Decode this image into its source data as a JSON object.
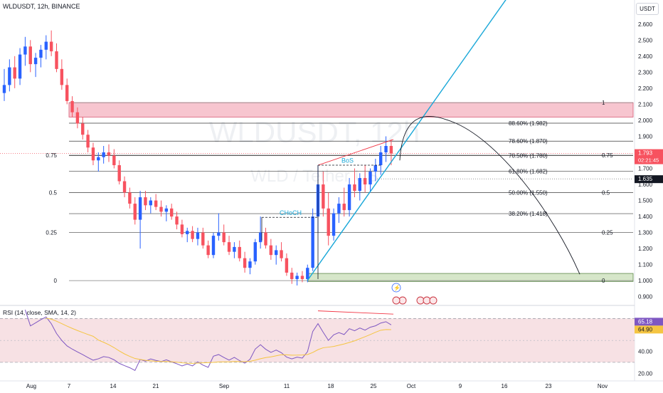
{
  "header": {
    "symbol_line": "WLDUSDT, 12h, BINANCE",
    "currency": "USDT"
  },
  "watermark": {
    "symbol": "WLDUSDT, 12h",
    "pair": "WLD / Tether US"
  },
  "chart_data": {
    "type": "candlestick",
    "title": "WLDUSDT, 12h, BINANCE",
    "ylim": [
      0.85,
      2.75
    ],
    "price_ticks": [
      "2.600",
      "2.500",
      "2.400",
      "2.300",
      "2.200",
      "2.100",
      "2.000",
      "1.900",
      "1.800",
      "1.700",
      "1.600",
      "1.500",
      "1.400",
      "1.300",
      "1.200",
      "1.100",
      "1.000",
      "0.900"
    ],
    "time_ticks": [
      "Aug",
      "7",
      "14",
      "21",
      "Sep",
      "11",
      "18",
      "25",
      "Oct",
      "9",
      "16",
      "23",
      "Nov"
    ],
    "last_price": {
      "value": "1.793",
      "countdown": "02:21:45"
    },
    "level_label": "1.635",
    "fib_left": [
      "0.75",
      "0.5",
      "0.25",
      "0"
    ],
    "fib_right": [
      "1",
      "0.75",
      "0.5",
      "0.25",
      "0"
    ],
    "fib_levels": [
      {
        "label": "88.60% (1.982)",
        "value": 1.982
      },
      {
        "label": "78.60% (1.870)",
        "value": 1.87
      },
      {
        "label": "70.50% (1.780)",
        "value": 1.78
      },
      {
        "label": "61.80% (1.682)",
        "value": 1.682
      },
      {
        "label": "50.00% (1.550)",
        "value": 1.55
      },
      {
        "label": "38.20% (1.418)",
        "value": 1.418
      }
    ],
    "supply_zone": [
      2.02,
      2.11
    ],
    "demand_zone": [
      0.995,
      1.045
    ],
    "annotations": [
      "BoS",
      "CHoCH"
    ],
    "candles": [
      [
        2.17,
        2.32,
        2.12,
        2.22
      ],
      [
        2.22,
        2.38,
        2.18,
        2.33
      ],
      [
        2.33,
        2.4,
        2.2,
        2.26
      ],
      [
        2.26,
        2.45,
        2.22,
        2.41
      ],
      [
        2.41,
        2.52,
        2.34,
        2.46
      ],
      [
        2.46,
        2.5,
        2.3,
        2.35
      ],
      [
        2.35,
        2.42,
        2.27,
        2.39
      ],
      [
        2.39,
        2.47,
        2.33,
        2.44
      ],
      [
        2.44,
        2.53,
        2.38,
        2.49
      ],
      [
        2.49,
        2.56,
        2.4,
        2.43
      ],
      [
        2.43,
        2.48,
        2.3,
        2.32
      ],
      [
        2.32,
        2.38,
        2.19,
        2.22
      ],
      [
        2.22,
        2.26,
        2.1,
        2.12
      ],
      [
        2.12,
        2.15,
        2.02,
        2.05
      ],
      [
        2.05,
        2.08,
        1.95,
        1.98
      ],
      [
        1.98,
        2.02,
        1.88,
        1.91
      ],
      [
        1.91,
        1.94,
        1.8,
        1.83
      ],
      [
        1.83,
        1.86,
        1.72,
        1.75
      ],
      [
        1.75,
        1.8,
        1.68,
        1.77
      ],
      [
        1.77,
        1.84,
        1.73,
        1.8
      ],
      [
        1.8,
        1.85,
        1.74,
        1.78
      ],
      [
        1.78,
        1.82,
        1.7,
        1.72
      ],
      [
        1.72,
        1.75,
        1.6,
        1.62
      ],
      [
        1.62,
        1.65,
        1.52,
        1.55
      ],
      [
        1.55,
        1.58,
        1.45,
        1.48
      ],
      [
        1.48,
        1.52,
        1.35,
        1.38
      ],
      [
        1.38,
        1.56,
        1.2,
        1.52
      ],
      [
        1.52,
        1.56,
        1.44,
        1.47
      ],
      [
        1.47,
        1.52,
        1.42,
        1.5
      ],
      [
        1.5,
        1.54,
        1.44,
        1.46
      ],
      [
        1.46,
        1.5,
        1.4,
        1.43
      ],
      [
        1.43,
        1.47,
        1.37,
        1.45
      ],
      [
        1.45,
        1.48,
        1.38,
        1.4
      ],
      [
        1.4,
        1.43,
        1.32,
        1.35
      ],
      [
        1.35,
        1.38,
        1.27,
        1.29
      ],
      [
        1.29,
        1.33,
        1.24,
        1.31
      ],
      [
        1.31,
        1.34,
        1.24,
        1.26
      ],
      [
        1.26,
        1.33,
        1.22,
        1.3
      ],
      [
        1.3,
        1.33,
        1.2,
        1.22
      ],
      [
        1.22,
        1.25,
        1.14,
        1.16
      ],
      [
        1.16,
        1.3,
        1.14,
        1.28
      ],
      [
        1.28,
        1.42,
        1.25,
        1.3
      ],
      [
        1.3,
        1.35,
        1.22,
        1.24
      ],
      [
        1.24,
        1.28,
        1.16,
        1.18
      ],
      [
        1.18,
        1.24,
        1.14,
        1.21
      ],
      [
        1.21,
        1.25,
        1.12,
        1.14
      ],
      [
        1.14,
        1.18,
        1.05,
        1.08
      ],
      [
        1.08,
        1.14,
        1.04,
        1.12
      ],
      [
        1.12,
        1.26,
        1.1,
        1.24
      ],
      [
        1.24,
        1.4,
        1.2,
        1.3
      ],
      [
        1.3,
        1.33,
        1.2,
        1.22
      ],
      [
        1.22,
        1.26,
        1.13,
        1.16
      ],
      [
        1.16,
        1.22,
        1.1,
        1.19
      ],
      [
        1.19,
        1.24,
        1.12,
        1.14
      ],
      [
        1.14,
        1.17,
        1.03,
        1.05
      ],
      [
        1.05,
        1.08,
        0.98,
        1.01
      ],
      [
        1.01,
        1.05,
        0.97,
        1.03
      ],
      [
        1.03,
        1.06,
        0.99,
        1.01
      ],
      [
        1.01,
        1.1,
        0.99,
        1.08
      ],
      [
        1.08,
        1.45,
        1.06,
        1.4
      ],
      [
        1.4,
        1.72,
        1.3,
        1.6
      ],
      [
        1.6,
        1.68,
        1.4,
        1.45
      ],
      [
        1.45,
        1.55,
        1.22,
        1.28
      ],
      [
        1.28,
        1.45,
        1.25,
        1.42
      ],
      [
        1.42,
        1.52,
        1.36,
        1.48
      ],
      [
        1.48,
        1.58,
        1.4,
        1.44
      ],
      [
        1.44,
        1.64,
        1.4,
        1.6
      ],
      [
        1.6,
        1.7,
        1.52,
        1.56
      ],
      [
        1.56,
        1.67,
        1.5,
        1.64
      ],
      [
        1.64,
        1.72,
        1.55,
        1.6
      ],
      [
        1.6,
        1.7,
        1.55,
        1.68
      ],
      [
        1.68,
        1.76,
        1.62,
        1.72
      ],
      [
        1.72,
        1.84,
        1.66,
        1.8
      ],
      [
        1.8,
        1.9,
        1.74,
        1.84
      ],
      [
        1.84,
        1.88,
        1.72,
        1.793
      ]
    ],
    "rsi": {
      "label": "RSI (14, close, SMA, 14, 2)",
      "ticks": [
        "40.00",
        "20.00"
      ],
      "value": "65.18",
      "sma_value": "64.90",
      "levels": [
        70,
        30
      ],
      "ylim": [
        15,
        80
      ]
    }
  }
}
